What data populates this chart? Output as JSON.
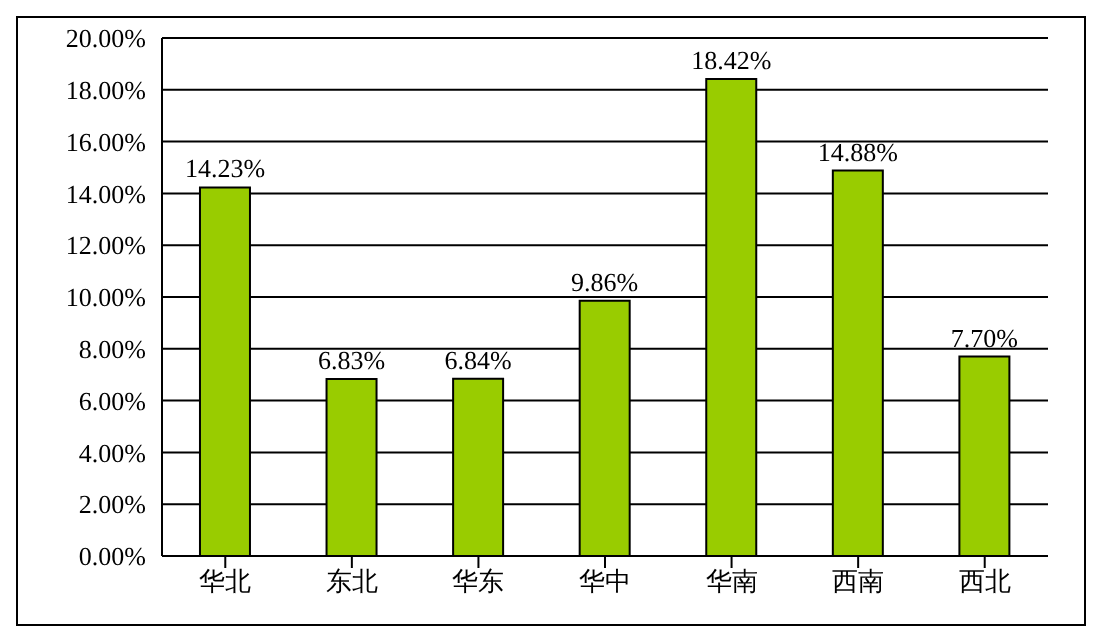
{
  "chart_data": {
    "type": "bar",
    "categories": [
      "华北",
      "东北",
      "华东",
      "华中",
      "华南",
      "西南",
      "西北"
    ],
    "values": [
      14.23,
      6.83,
      6.84,
      9.86,
      18.42,
      14.88,
      7.7
    ],
    "value_labels": [
      "14.23%",
      "6.83%",
      "6.84%",
      "9.86%",
      "18.42%",
      "14.88%",
      "7.70%"
    ],
    "color": "#99cc00",
    "ylim": [
      0,
      20
    ],
    "yticks": [
      {
        "value": 0,
        "label": "0.00%"
      },
      {
        "value": 2,
        "label": "2.00%"
      },
      {
        "value": 4,
        "label": "4.00%"
      },
      {
        "value": 6,
        "label": "6.00%"
      },
      {
        "value": 8,
        "label": "8.00%"
      },
      {
        "value": 10,
        "label": "10.00%"
      },
      {
        "value": 12,
        "label": "12.00%"
      },
      {
        "value": 14,
        "label": "14.00%"
      },
      {
        "value": 16,
        "label": "16.00%"
      },
      {
        "value": 18,
        "label": "18.00%"
      },
      {
        "value": 20,
        "label": "20.00%"
      }
    ],
    "grid": "y",
    "legend": false
  }
}
